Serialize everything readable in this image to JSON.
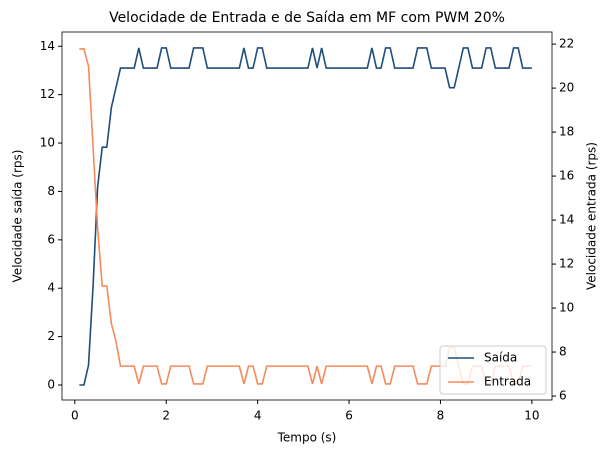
{
  "chart_data": {
    "type": "line",
    "title": "Velocidade de Entrada e de Saída em MF com PWM 20%",
    "xlabel": "Tempo (s)",
    "ylabel": "Velocidade saída (rps)",
    "y2label": "Velocidade entrada (rps)",
    "xlim": [
      -0.28,
      10.44
    ],
    "ylim": [
      -0.62,
      14.59
    ],
    "y2lim": [
      5.82,
      22.55
    ],
    "xticks": [
      0,
      2,
      4,
      6,
      8,
      10
    ],
    "yticks": [
      0,
      2,
      4,
      6,
      8,
      10,
      12,
      14
    ],
    "y2ticks": [
      6,
      8,
      10,
      12,
      14,
      16,
      18,
      20,
      22
    ],
    "legend": "lower right",
    "x": [
      0.1,
      0.2,
      0.3,
      0.4,
      0.5,
      0.6,
      0.7,
      0.8,
      0.9,
      1.0,
      1.1,
      1.2,
      1.3,
      1.4,
      1.5,
      1.6,
      1.7,
      1.8,
      1.9,
      2.0,
      2.1,
      2.2,
      2.3,
      2.4,
      2.5,
      2.6,
      2.7,
      2.8,
      2.9,
      3.0,
      3.1,
      3.2,
      3.3,
      3.4,
      3.5,
      3.6,
      3.7,
      3.8,
      3.9,
      4.0,
      4.1,
      4.2,
      4.3,
      4.4,
      4.5,
      4.6,
      4.7,
      4.8,
      4.9,
      5.0,
      5.1,
      5.2,
      5.3,
      5.4,
      5.5,
      5.6,
      5.7,
      5.8,
      5.9,
      6.0,
      6.1,
      6.2,
      6.3,
      6.4,
      6.5,
      6.6,
      6.7,
      6.8,
      6.9,
      7.0,
      7.1,
      7.2,
      7.3,
      7.4,
      7.5,
      7.6,
      7.7,
      7.8,
      7.9,
      8.0,
      8.1,
      8.2,
      8.3,
      8.4,
      8.5,
      8.6,
      8.7,
      8.8,
      8.9,
      9.0,
      9.1,
      9.2,
      9.3,
      9.4,
      9.5,
      9.6,
      9.7,
      9.8,
      9.9,
      10.0
    ],
    "series": [
      {
        "name": "Saída",
        "color": "#1f4e79",
        "axis": "y",
        "values": [
          0,
          0,
          0.82,
          4.1,
          8.2,
          9.83,
          9.83,
          11.47,
          12.29,
          13.1,
          13.1,
          13.1,
          13.1,
          13.93,
          13.1,
          13.1,
          13.1,
          13.1,
          13.93,
          13.93,
          13.1,
          13.1,
          13.1,
          13.1,
          13.1,
          13.93,
          13.93,
          13.93,
          13.1,
          13.1,
          13.1,
          13.1,
          13.1,
          13.1,
          13.1,
          13.1,
          13.93,
          13.1,
          13.1,
          13.93,
          13.93,
          13.1,
          13.1,
          13.1,
          13.1,
          13.1,
          13.1,
          13.1,
          13.1,
          13.1,
          13.1,
          13.93,
          13.1,
          13.93,
          13.1,
          13.1,
          13.1,
          13.1,
          13.1,
          13.1,
          13.1,
          13.1,
          13.1,
          13.1,
          13.93,
          13.1,
          13.1,
          13.93,
          13.93,
          13.1,
          13.1,
          13.1,
          13.1,
          13.1,
          13.93,
          13.93,
          13.93,
          13.1,
          13.1,
          13.1,
          13.1,
          12.29,
          12.29,
          13.1,
          13.93,
          13.93,
          13.1,
          13.1,
          13.1,
          13.93,
          13.93,
          13.1,
          13.1,
          13.1,
          13.1,
          13.93,
          13.93,
          13.1,
          13.1,
          13.1
        ]
      },
      {
        "name": "Entrada",
        "color": "#f58a5b",
        "axis": "y2",
        "values": [
          21.78,
          21.78,
          21.0,
          17.3,
          13.6,
          11.0,
          11.0,
          9.3,
          8.5,
          7.36,
          7.36,
          7.36,
          7.36,
          6.55,
          7.36,
          7.36,
          7.36,
          7.36,
          6.55,
          6.55,
          7.36,
          7.36,
          7.36,
          7.36,
          7.36,
          6.55,
          6.55,
          6.55,
          7.36,
          7.36,
          7.36,
          7.36,
          7.36,
          7.36,
          7.36,
          7.36,
          6.55,
          7.36,
          7.36,
          6.55,
          6.55,
          7.36,
          7.36,
          7.36,
          7.36,
          7.36,
          7.36,
          7.36,
          7.36,
          7.36,
          7.36,
          6.55,
          7.36,
          6.55,
          7.36,
          7.36,
          7.36,
          7.36,
          7.36,
          7.36,
          7.36,
          7.36,
          7.36,
          7.36,
          6.55,
          7.36,
          7.36,
          6.55,
          6.55,
          7.36,
          7.36,
          7.36,
          7.36,
          7.36,
          6.55,
          6.55,
          6.55,
          7.36,
          7.36,
          7.36,
          7.36,
          8.2,
          8.2,
          7.36,
          6.55,
          6.55,
          7.36,
          7.36,
          7.36,
          6.55,
          6.55,
          7.36,
          7.36,
          7.36,
          7.36,
          6.55,
          6.55,
          7.36,
          7.36,
          7.36
        ]
      }
    ]
  }
}
